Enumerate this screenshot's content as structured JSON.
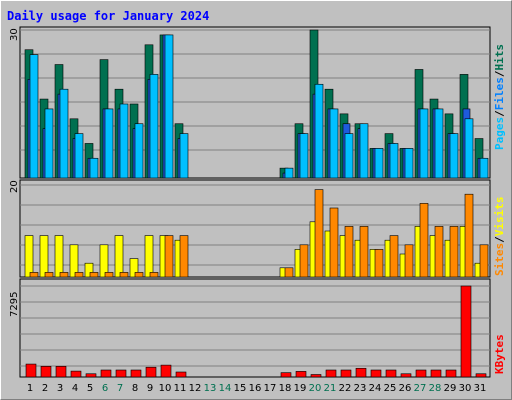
{
  "title": "Daily usage for January 2024",
  "colors": {
    "hits": "#007050",
    "files": "#00c0ff",
    "pages": "#1e5bdc",
    "visits": "#ffff00",
    "sites": "#ff8800",
    "kbytes": "#ff0000",
    "weekday_label": "#000000",
    "weekend_label": "#007050",
    "title": "#0000ff",
    "panel_bg": "#c0c0c0"
  },
  "right_labels": {
    "top": [
      {
        "text": "Pages",
        "color": "#00c0ff"
      },
      {
        "text": "/",
        "color": "#000000"
      },
      {
        "text": "Files",
        "color": "#0080ff"
      },
      {
        "text": "/",
        "color": "#000000"
      },
      {
        "text": "Hits",
        "color": "#007050"
      }
    ],
    "middle": [
      {
        "text": "Sites",
        "color": "#ff8800"
      },
      {
        "text": "/",
        "color": "#000000"
      },
      {
        "text": "Visits",
        "color": "#ffff00"
      }
    ],
    "bottom": [
      {
        "text": "KBytes",
        "color": "#ff0000"
      }
    ]
  },
  "chart_data": [
    {
      "type": "bar",
      "title": "Daily usage for January 2024",
      "ylim": [
        0,
        30
      ],
      "ymax_label": "30",
      "categories": [
        "1",
        "2",
        "3",
        "4",
        "5",
        "6",
        "7",
        "8",
        "9",
        "10",
        "11",
        "12",
        "13",
        "14",
        "15",
        "16",
        "17",
        "18",
        "19",
        "20",
        "21",
        "22",
        "23",
        "24",
        "25",
        "26",
        "27",
        "28",
        "29",
        "30",
        "31"
      ],
      "weekend_days": [
        "6",
        "7",
        "13",
        "14",
        "20",
        "21",
        "27",
        "28"
      ],
      "series": [
        {
          "name": "Hits",
          "values": [
            26,
            16,
            23,
            12,
            7,
            24,
            18,
            15,
            27,
            29,
            11,
            0,
            0,
            0,
            0,
            0,
            0,
            2,
            11,
            30,
            18,
            13,
            11,
            6,
            9,
            6,
            22,
            16,
            13,
            21,
            8
          ]
        },
        {
          "name": "Files",
          "values": [
            25,
            14,
            18,
            9,
            4,
            14,
            15,
            11,
            21,
            29,
            9,
            0,
            0,
            0,
            0,
            0,
            0,
            2,
            9,
            19,
            14,
            9,
            11,
            6,
            7,
            6,
            14,
            14,
            9,
            12,
            4
          ]
        },
        {
          "name": "Pages",
          "values": [
            20,
            10,
            17,
            8,
            4,
            14,
            14,
            10,
            20,
            29,
            8,
            0,
            0,
            0,
            0,
            0,
            0,
            1,
            9,
            17,
            14,
            11,
            10,
            6,
            7,
            6,
            14,
            14,
            9,
            14,
            4
          ]
        }
      ]
    },
    {
      "type": "bar",
      "ylim": [
        0,
        20
      ],
      "ymax_label": "20",
      "categories": [
        "1",
        "2",
        "3",
        "4",
        "5",
        "6",
        "7",
        "8",
        "9",
        "10",
        "11",
        "12",
        "13",
        "14",
        "15",
        "16",
        "17",
        "18",
        "19",
        "20",
        "21",
        "22",
        "23",
        "24",
        "25",
        "26",
        "27",
        "28",
        "29",
        "30",
        "31"
      ],
      "series": [
        {
          "name": "Visits",
          "values": [
            9,
            9,
            9,
            7,
            3,
            7,
            9,
            4,
            9,
            9,
            8,
            0,
            0,
            0,
            0,
            0,
            0,
            2,
            6,
            12,
            10,
            9,
            8,
            6,
            8,
            5,
            11,
            9,
            8,
            11,
            3
          ]
        },
        {
          "name": "Sites",
          "values": [
            1,
            1,
            1,
            1,
            1,
            1,
            1,
            1,
            1,
            9,
            9,
            0,
            0,
            0,
            0,
            0,
            0,
            2,
            7,
            19,
            15,
            11,
            11,
            6,
            9,
            7,
            16,
            11,
            11,
            18,
            7
          ]
        }
      ]
    },
    {
      "type": "bar",
      "ylim": [
        0,
        7295
      ],
      "ymax_label": "7295",
      "categories": [
        "1",
        "2",
        "3",
        "4",
        "5",
        "6",
        "7",
        "8",
        "9",
        "10",
        "11",
        "12",
        "13",
        "14",
        "15",
        "16",
        "17",
        "18",
        "19",
        "20",
        "21",
        "22",
        "23",
        "24",
        "25",
        "26",
        "27",
        "28",
        "29",
        "30",
        "31"
      ],
      "series": [
        {
          "name": "KBytes",
          "values": [
            1037,
            857,
            857,
            473,
            260,
            560,
            560,
            560,
            784,
            953,
            400,
            0,
            0,
            0,
            0,
            0,
            0,
            350,
            450,
            200,
            560,
            560,
            700,
            560,
            560,
            260,
            560,
            560,
            560,
            7295,
            260
          ]
        }
      ]
    }
  ]
}
